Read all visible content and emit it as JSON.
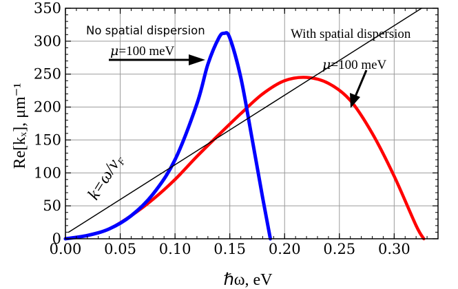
{
  "chart_data": {
    "type": "line",
    "xlabel": "ℏω, eV",
    "ylabel": "Re[kₓ], μm⁻¹",
    "xlim": [
      0,
      0.34
    ],
    "ylim": [
      0,
      350
    ],
    "x_ticks": [
      "0.00",
      "0.05",
      "0.10",
      "0.15",
      "0.20",
      "0.25",
      "0.30"
    ],
    "y_ticks": [
      "0",
      "50",
      "100",
      "150",
      "200",
      "250",
      "300",
      "350"
    ],
    "grid": true,
    "series": [
      {
        "name": "No spatial dispersion",
        "color": "#0000ff",
        "x": [
          0.0,
          0.02,
          0.04,
          0.06,
          0.08,
          0.1,
          0.12,
          0.13,
          0.14,
          0.145,
          0.15,
          0.16,
          0.17,
          0.18,
          0.187
        ],
        "y": [
          0,
          5,
          15,
          35,
          68,
          120,
          205,
          265,
          305,
          312,
          305,
          245,
          155,
          62,
          0
        ]
      },
      {
        "name": "With spatial dispersion",
        "color": "#ff0000",
        "x": [
          0.0,
          0.02,
          0.04,
          0.06,
          0.08,
          0.1,
          0.12,
          0.14,
          0.16,
          0.18,
          0.2,
          0.22,
          0.24,
          0.26,
          0.28,
          0.3,
          0.32,
          0.327
        ],
        "y": [
          0,
          5,
          15,
          35,
          60,
          90,
          125,
          158,
          190,
          220,
          240,
          245,
          236,
          210,
          160,
          95,
          20,
          0
        ]
      },
      {
        "name": "k=ω/vF",
        "color": "#000000",
        "x": [
          0.003,
          0.325
        ],
        "y": [
          10,
          350
        ]
      }
    ],
    "annotations": {
      "no_dispersion": "No spatial dispersion",
      "no_dispersion_mu": "=100 meV",
      "with_dispersion": "With spatial dispersion",
      "with_dispersion_mu": "=100 meV",
      "mu_symbol": "μ",
      "line_label": "k=ω/v",
      "line_label_sub": "F"
    }
  }
}
